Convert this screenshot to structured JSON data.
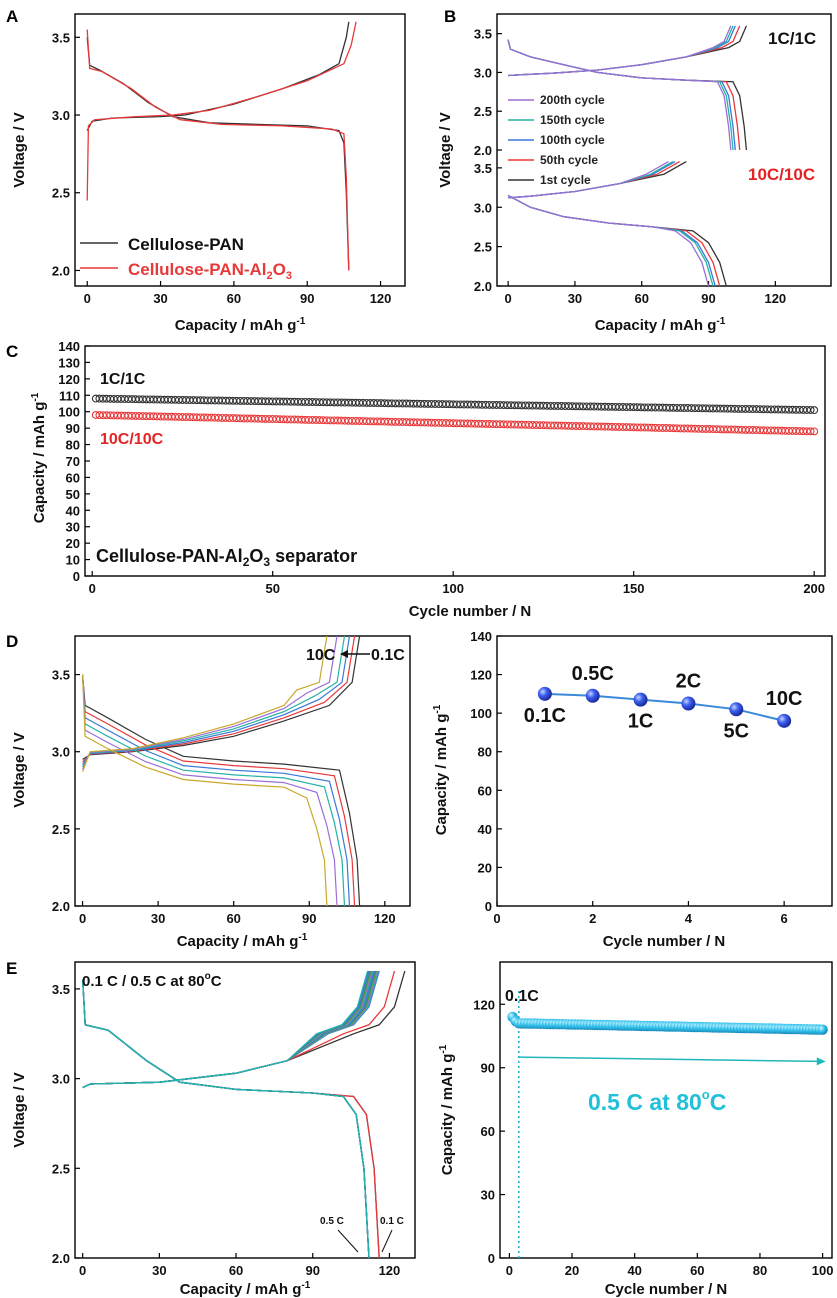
{
  "colors": {
    "black_series": "#333333",
    "red_series": "#e8393a",
    "blue_series": "#3a78d8",
    "cyan_series": "#25b3d9",
    "teal_series": "#23b3a5",
    "purple_series": "#9b6fd6",
    "accent_red_text": "#e22426",
    "accent_cyan_text": "#20c0d8"
  },
  "chart_data": [
    {
      "panel": "A",
      "type": "line",
      "xlabel": "Capacity   /   mAh g",
      "xlabel_sup": "-1",
      "ylabel": "Voltage   /   V",
      "xlim": [
        -5,
        130
      ],
      "ylim": [
        1.9,
        3.65
      ],
      "xticks": [
        0,
        30,
        60,
        90,
        120
      ],
      "yticks": [
        2.0,
        2.5,
        3.0,
        3.5
      ],
      "legend": [
        {
          "name": "Cellulose-PAN",
          "color": "#333333"
        },
        {
          "name": "Cellulose-PAN-Al2O3",
          "color": "#e8393a"
        }
      ],
      "legend_labels": {
        "l1": "Cellulose-PAN",
        "l2_pre": "Cellulose-PAN-Al",
        "l2_sub1": "2",
        "l2_mid": "O",
        "l2_sub2": "3"
      },
      "series": [
        {
          "name": "Cellulose-PAN",
          "color": "#333333",
          "charge": [
            [
              0,
              2.9
            ],
            [
              2,
              2.96
            ],
            [
              10,
              2.98
            ],
            [
              30,
              2.99
            ],
            [
              40,
              3.0
            ],
            [
              60,
              3.07
            ],
            [
              80,
              3.17
            ],
            [
              95,
              3.26
            ],
            [
              103,
              3.33
            ],
            [
              106,
              3.5
            ],
            [
              107,
              3.6
            ]
          ],
          "discharge": [
            [
              0,
              3.5
            ],
            [
              1,
              3.32
            ],
            [
              5,
              3.29
            ],
            [
              15,
              3.2
            ],
            [
              25,
              3.08
            ],
            [
              35,
              2.99
            ],
            [
              50,
              2.95
            ],
            [
              70,
              2.94
            ],
            [
              90,
              2.93
            ],
            [
              103,
              2.9
            ],
            [
              105,
              2.82
            ],
            [
              106,
              2.5
            ],
            [
              107,
              2.0
            ]
          ]
        },
        {
          "name": "Cellulose-PAN-Al2O3",
          "color": "#e8393a",
          "charge": [
            [
              0,
              2.45
            ],
            [
              0.5,
              2.93
            ],
            [
              3,
              2.97
            ],
            [
              20,
              2.99
            ],
            [
              35,
              3.0
            ],
            [
              50,
              3.03
            ],
            [
              70,
              3.12
            ],
            [
              90,
              3.22
            ],
            [
              105,
              3.33
            ],
            [
              108,
              3.45
            ],
            [
              110,
              3.6
            ]
          ],
          "discharge": [
            [
              0,
              3.55
            ],
            [
              1,
              3.3
            ],
            [
              6,
              3.28
            ],
            [
              18,
              3.17
            ],
            [
              28,
              3.05
            ],
            [
              38,
              2.97
            ],
            [
              55,
              2.94
            ],
            [
              80,
              2.93
            ],
            [
              100,
              2.91
            ],
            [
              105,
              2.88
            ],
            [
              106,
              2.6
            ],
            [
              107,
              2.0
            ]
          ]
        }
      ]
    },
    {
      "panel": "B",
      "type": "line",
      "xlabel": "Capacity / mAh g",
      "xlabel_sup": "-1",
      "ylabel": "Voltage   /   V",
      "xlim": [
        -5,
        145
      ],
      "xticks": [
        0,
        30,
        60,
        90,
        120
      ],
      "yticks_top": [
        2.0,
        2.5,
        3.0,
        3.5
      ],
      "yticks_bottom": [
        2.0,
        2.5,
        3.0,
        3.5
      ],
      "label_top": "1C/1C",
      "label_bottom": "10C/10C",
      "legend": [
        {
          "name": "200th cycle",
          "color": "#9b6fd6"
        },
        {
          "name": "150th cycle",
          "color": "#23b3a5"
        },
        {
          "name": "100th cycle",
          "color": "#3a78d8"
        },
        {
          "name": "50th cycle",
          "color": "#e8393a"
        },
        {
          "name": "1st cycle",
          "color": "#333333"
        }
      ],
      "end_capacity_1C": [
        100,
        101,
        102,
        104,
        107
      ],
      "end_capacity_10C": [
        90,
        92,
        93,
        95,
        98
      ]
    },
    {
      "panel": "C",
      "type": "scatter",
      "xlabel": "Cycle number   /   N",
      "ylabel": "Capacity / mAh g",
      "ylabel_sup": "-1",
      "xlim": [
        -2,
        203
      ],
      "ylim": [
        0,
        140
      ],
      "xticks": [
        0,
        50,
        100,
        150,
        200
      ],
      "yticks": [
        0,
        10,
        20,
        30,
        40,
        50,
        60,
        70,
        80,
        90,
        100,
        110,
        120,
        130,
        140
      ],
      "annotation": {
        "pre": "Cellulose-PAN-Al",
        "sub1": "2",
        "mid": "O",
        "sub2": "3",
        "post": " separator"
      },
      "series": [
        {
          "name": "1C/1C",
          "color": "#333333",
          "start": 108,
          "end": 101,
          "n": 200
        },
        {
          "name": "10C/10C",
          "color": "#e8393a",
          "start": 98,
          "end": 88,
          "n": 200
        }
      ]
    },
    {
      "panel": "D-left",
      "type": "line",
      "xlabel": "Capacity   /   mAh g",
      "xlabel_sup": "-1",
      "ylabel": "Voltage   /   V",
      "xlim": [
        -3,
        130
      ],
      "ylim": [
        2.0,
        3.75
      ],
      "xticks": [
        0,
        30,
        60,
        90,
        120
      ],
      "yticks": [
        2.0,
        2.5,
        3.0,
        3.5
      ],
      "rate_annotation": {
        "from": "10C",
        "to": "0.1C"
      },
      "end_capacities": [
        110,
        108,
        106,
        104,
        101,
        97
      ],
      "colors": [
        "#333333",
        "#e8393a",
        "#3a78d8",
        "#23b3a5",
        "#9b6fd6",
        "#c9a82a"
      ]
    },
    {
      "panel": "D-right",
      "type": "line",
      "xlabel": "Cycle number   /   N",
      "ylabel": "Capacity   /   mAh g",
      "ylabel_sup": "-1",
      "xlim": [
        0,
        7
      ],
      "ylim": [
        0,
        140
      ],
      "xticks": [
        0,
        2,
        4,
        6
      ],
      "yticks": [
        0,
        20,
        40,
        60,
        80,
        100,
        120,
        140
      ],
      "x": [
        1,
        2,
        3,
        4,
        5,
        6
      ],
      "values": [
        110,
        109,
        107,
        105,
        102,
        96
      ],
      "labels": [
        "0.1C",
        "0.5C",
        "1C",
        "2C",
        "5C",
        "10C"
      ]
    },
    {
      "panel": "E-left",
      "type": "line",
      "title": "0.1 C / 0.5 C at 80",
      "title_unit": "C",
      "title_deg": "o",
      "xlabel": "Capacity / mAh g",
      "xlabel_sup": "-1",
      "ylabel": "Voltage / V",
      "xlim": [
        -3,
        130
      ],
      "ylim": [
        2.0,
        3.65
      ],
      "xticks": [
        0,
        30,
        60,
        90,
        120
      ],
      "yticks": [
        2.0,
        2.5,
        3.0,
        3.5
      ],
      "arrow_labels": [
        "0.5 C",
        "0.1 C"
      ]
    },
    {
      "panel": "E-right",
      "type": "scatter",
      "xlabel": "Cycle number   /   N",
      "ylabel": "Capacity   /   mAh g",
      "ylabel_sup": "-1",
      "xlim": [
        -3,
        103
      ],
      "ylim": [
        0,
        140
      ],
      "xticks": [
        0,
        20,
        40,
        60,
        80,
        100
      ],
      "yticks": [
        0,
        30,
        60,
        90,
        120
      ],
      "label_initial": "0.1C",
      "label_main": "0.5 C at 80",
      "label_main_unit": "C",
      "label_main_deg": "o",
      "initial_values": [
        114,
        112
      ],
      "start": 111,
      "end": 108,
      "n": 100
    }
  ]
}
